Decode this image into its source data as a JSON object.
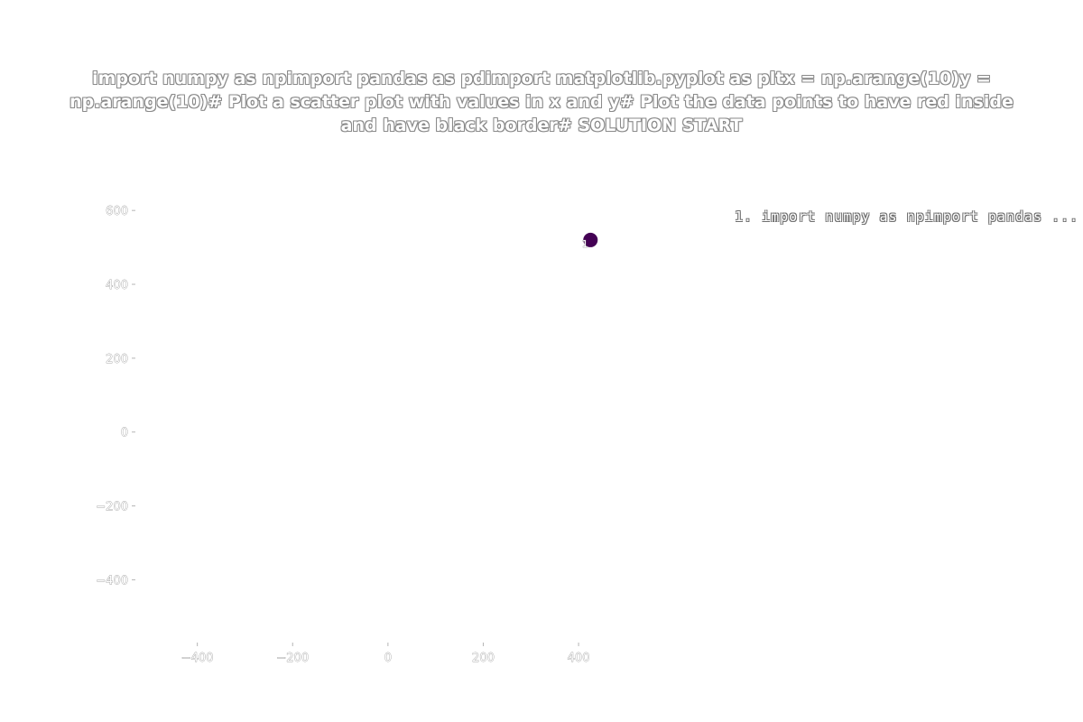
{
  "chart_data": {
    "type": "scatter",
    "title": "import numpy as npimport pandas as pdimport matplotlib.pyplot as pltx = np.arange(10)y = np.arange(10)# Plot a scatter plot with values in x and y# Plot the data points to have red inside and have black border# SOLUTION START",
    "xlabel": "",
    "ylabel": "",
    "xlim": [
      -530,
      540
    ],
    "ylim": [
      -570,
      620
    ],
    "x_ticks": [
      -400,
      -200,
      0,
      200,
      400
    ],
    "x_tick_labels": [
      "−400",
      "−200",
      "0",
      "200",
      "400"
    ],
    "y_ticks": [
      600,
      400,
      200,
      0,
      -200,
      -400
    ],
    "y_tick_labels": [
      "600",
      "400",
      "200",
      "0",
      "−200",
      "−400"
    ],
    "grid": false,
    "legend": {
      "placement": "top-right",
      "entries": [
        "1. import numpy as npimport pandas ..."
      ]
    },
    "series": [
      {
        "points": [
          {
            "x": 425,
            "y": 520,
            "label": "1"
          }
        ],
        "color": "#440154"
      }
    ]
  }
}
